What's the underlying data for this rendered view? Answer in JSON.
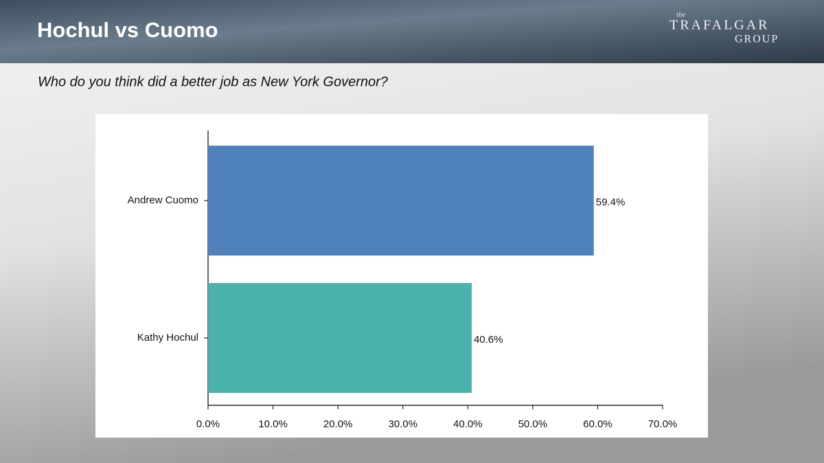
{
  "chart_data": {
    "type": "barh",
    "title": "Hochul vs Cuomo",
    "subtitle": "Who do you think did a better job as New York Governor?",
    "logo": {
      "small": "the",
      "line1": "TRAFALGAR",
      "line2": "GROUP"
    },
    "categories": [
      "Andrew Cuomo",
      "Kathy Hochul"
    ],
    "values": [
      59.4,
      40.6
    ],
    "value_labels": [
      "59.4%",
      "40.6%"
    ],
    "colors": [
      "#4f81bd",
      "#4bb3ad"
    ],
    "xlim": [
      0,
      70
    ],
    "xticks": [
      {
        "value": 0,
        "label": "0.0%"
      },
      {
        "value": 10,
        "label": "10.0%"
      },
      {
        "value": 20,
        "label": "20.0%"
      },
      {
        "value": 30,
        "label": "30.0%"
      },
      {
        "value": 40,
        "label": "40.0%"
      },
      {
        "value": 50,
        "label": "50.0%"
      },
      {
        "value": 60,
        "label": "60.0%"
      },
      {
        "value": 70,
        "label": "70.0%"
      }
    ],
    "grid": false
  }
}
